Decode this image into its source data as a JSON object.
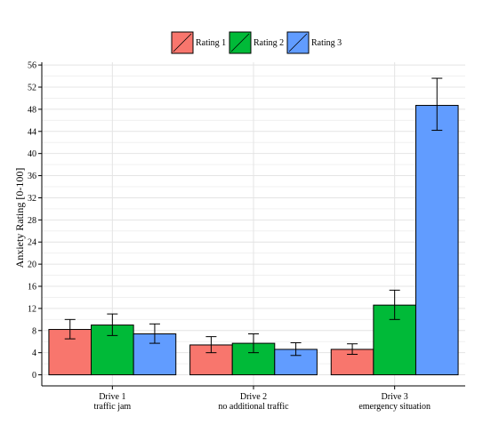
{
  "chart_data": {
    "type": "bar",
    "title": "",
    "xlabel": "",
    "ylabel": "Anxiety Rating [0-100]",
    "ylim": [
      -2,
      56.5
    ],
    "yticks": [
      0,
      4,
      8,
      12,
      16,
      20,
      24,
      28,
      32,
      36,
      40,
      44,
      48,
      52,
      56
    ],
    "grid": true,
    "legend_position": "top",
    "categories": [
      {
        "line1": "Drive 1",
        "line2": "traffic jam"
      },
      {
        "line1": "Drive 2",
        "line2": "no additional traffic"
      },
      {
        "line1": "Drive 3",
        "line2": "emergency situation"
      }
    ],
    "series": [
      {
        "name": "Rating 1",
        "color": "#f8766d",
        "values": [
          8.2,
          5.4,
          4.6
        ],
        "err_low": [
          6.5,
          4.0,
          3.7
        ],
        "err_high": [
          10.0,
          6.9,
          5.6
        ]
      },
      {
        "name": "Rating 2",
        "color": "#00ba38",
        "values": [
          9.0,
          5.7,
          12.6
        ],
        "err_low": [
          7.1,
          4.0,
          10.0
        ],
        "err_high": [
          11.0,
          7.4,
          15.3
        ]
      },
      {
        "name": "Rating 3",
        "color": "#619cff",
        "values": [
          7.4,
          4.6,
          48.7
        ],
        "err_low": [
          5.7,
          3.5,
          44.2
        ],
        "err_high": [
          9.2,
          5.8,
          53.6
        ]
      }
    ]
  }
}
